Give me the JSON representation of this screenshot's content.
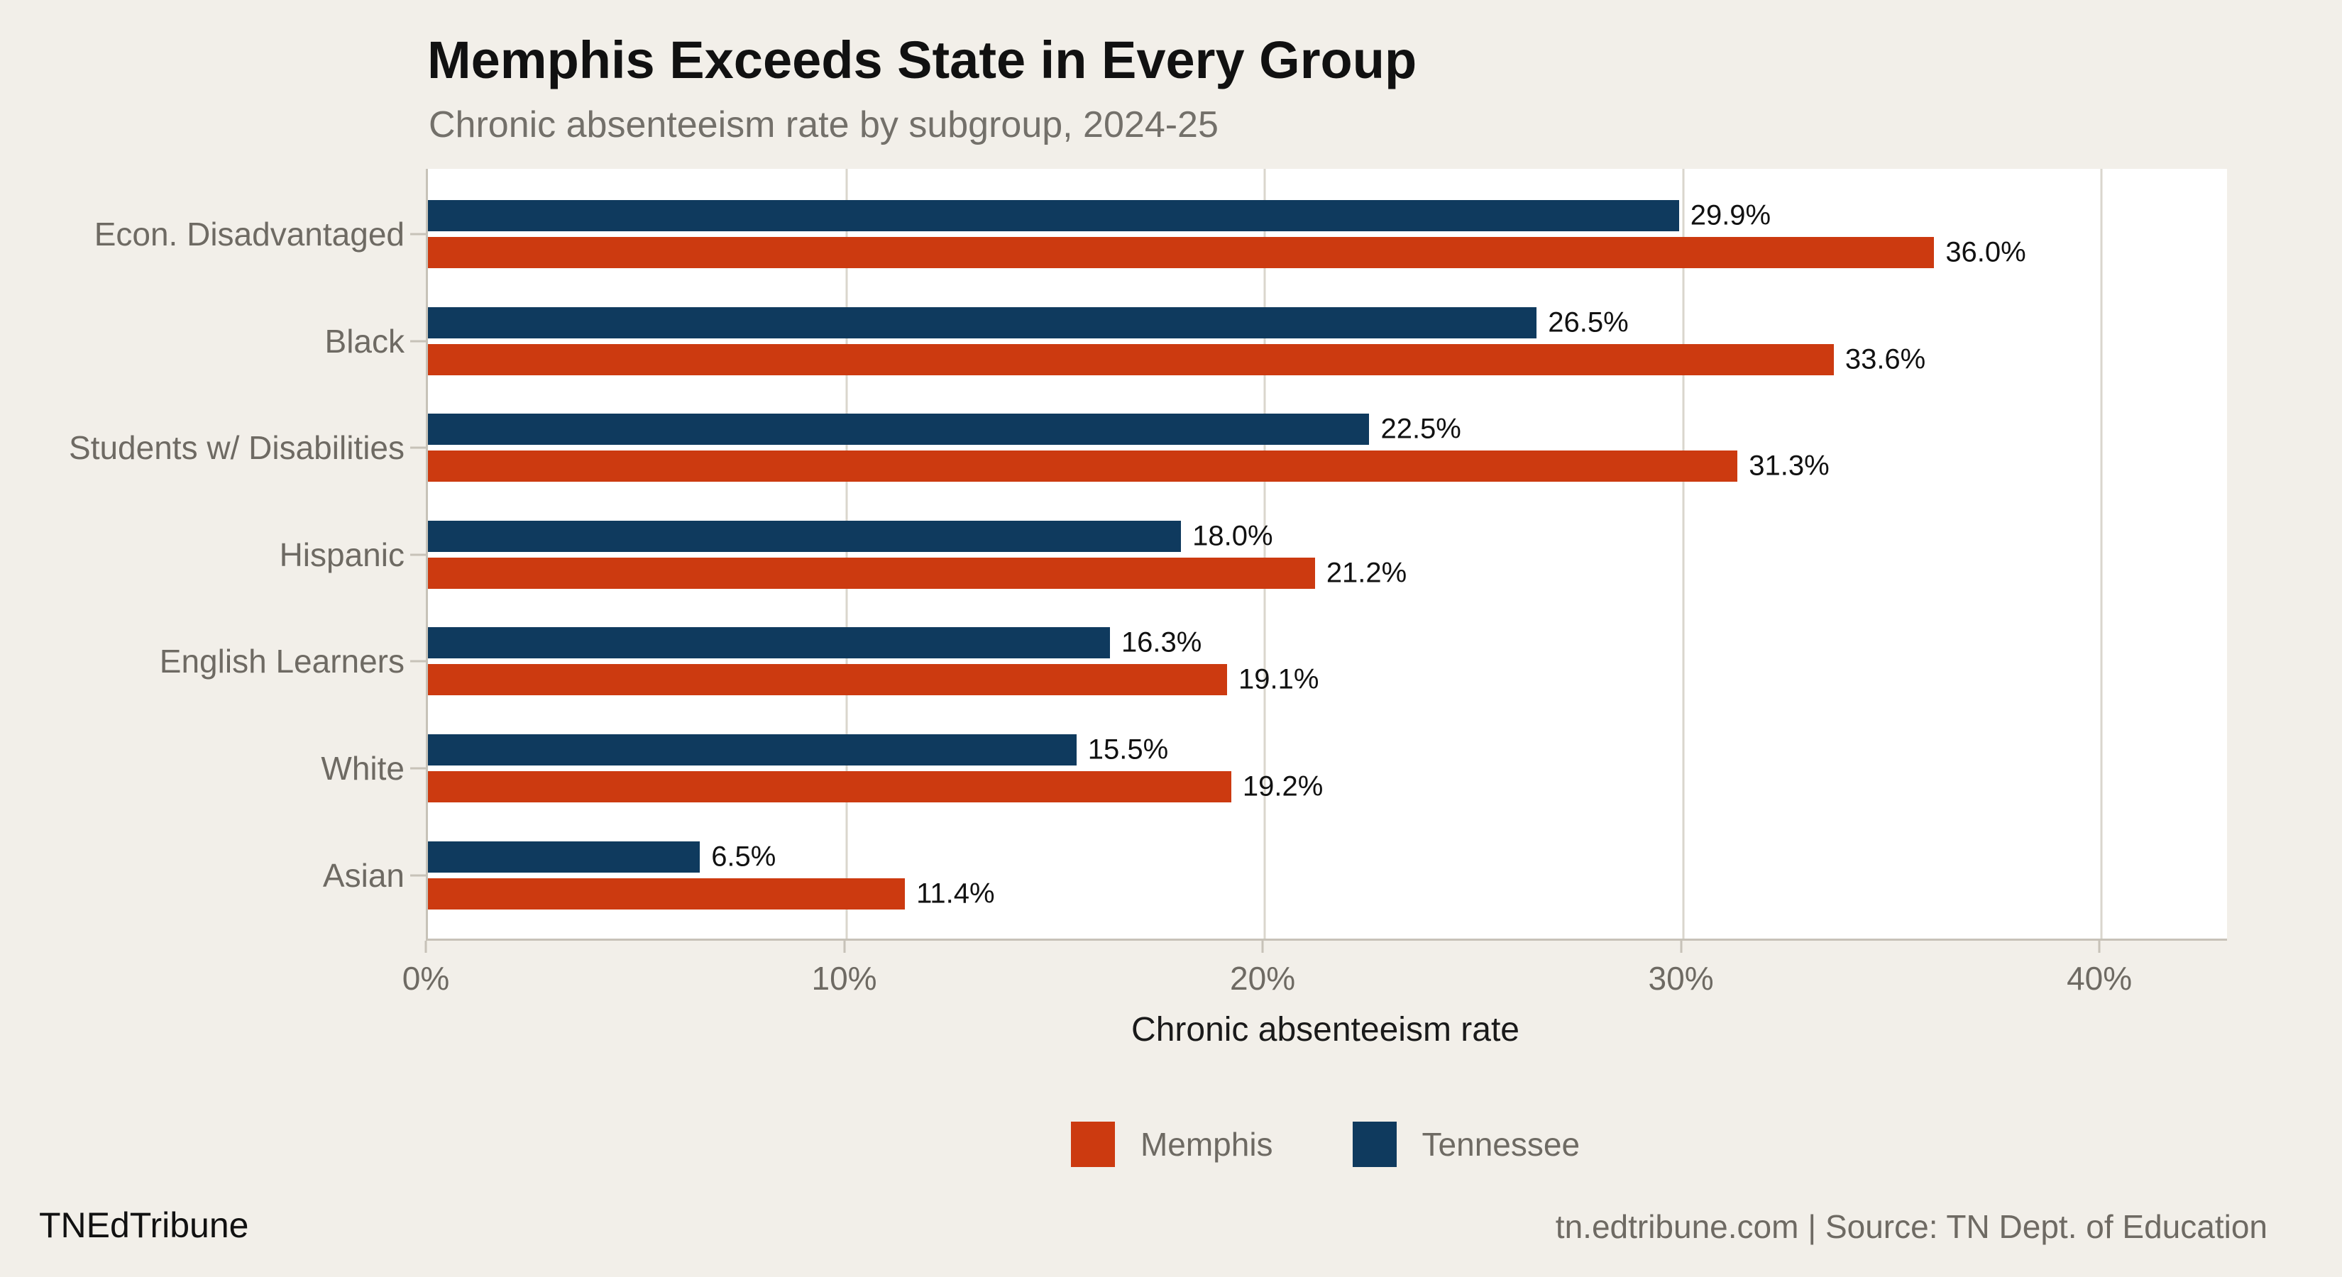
{
  "header": {
    "title": "Memphis Exceeds State in Every Group",
    "subtitle": "Chronic absenteeism rate by subgroup, 2024-25"
  },
  "chart_data": {
    "type": "bar",
    "orientation": "horizontal",
    "title": "Memphis Exceeds State in Every Group",
    "subtitle": "Chronic absenteeism rate by subgroup, 2024-25",
    "categories": [
      "Econ. Disadvantaged",
      "Black",
      "Students w/ Disabilities",
      "Hispanic",
      "English Learners",
      "White",
      "Asian"
    ],
    "series": [
      {
        "name": "Tennessee",
        "color": "#0f3a5e",
        "values": [
          29.9,
          26.5,
          22.5,
          18.0,
          16.3,
          15.5,
          6.5
        ]
      },
      {
        "name": "Memphis",
        "color": "#cc3a10",
        "values": [
          36.0,
          33.6,
          31.3,
          21.2,
          19.1,
          19.2,
          11.4
        ]
      }
    ],
    "value_labels": {
      "Tennessee": [
        "29.9%",
        "26.5%",
        "22.5%",
        "18.0%",
        "16.3%",
        "15.5%",
        "6.5%"
      ],
      "Memphis": [
        "36.0%",
        "33.6%",
        "31.3%",
        "21.2%",
        "19.1%",
        "19.2%",
        "11.4%"
      ]
    },
    "xlabel": "Chronic absenteeism rate",
    "ylabel": "",
    "xlim": [
      0,
      43
    ],
    "xticks": [
      {
        "value": 0,
        "label": "0%"
      },
      {
        "value": 10,
        "label": "10%"
      },
      {
        "value": 20,
        "label": "20%"
      },
      {
        "value": 30,
        "label": "30%"
      },
      {
        "value": 40,
        "label": "40%"
      }
    ],
    "grid": "vertical",
    "plot_background": "#ffffff",
    "page_background": "#f2efe9",
    "legend": {
      "position": "bottom",
      "entries": [
        {
          "label": "Memphis",
          "color": "#cc3a10"
        },
        {
          "label": "Tennessee",
          "color": "#0f3a5e"
        }
      ]
    }
  },
  "footer": {
    "brand": "TNEdTribune",
    "source": "tn.edtribune.com | Source: TN Dept. of Education"
  }
}
